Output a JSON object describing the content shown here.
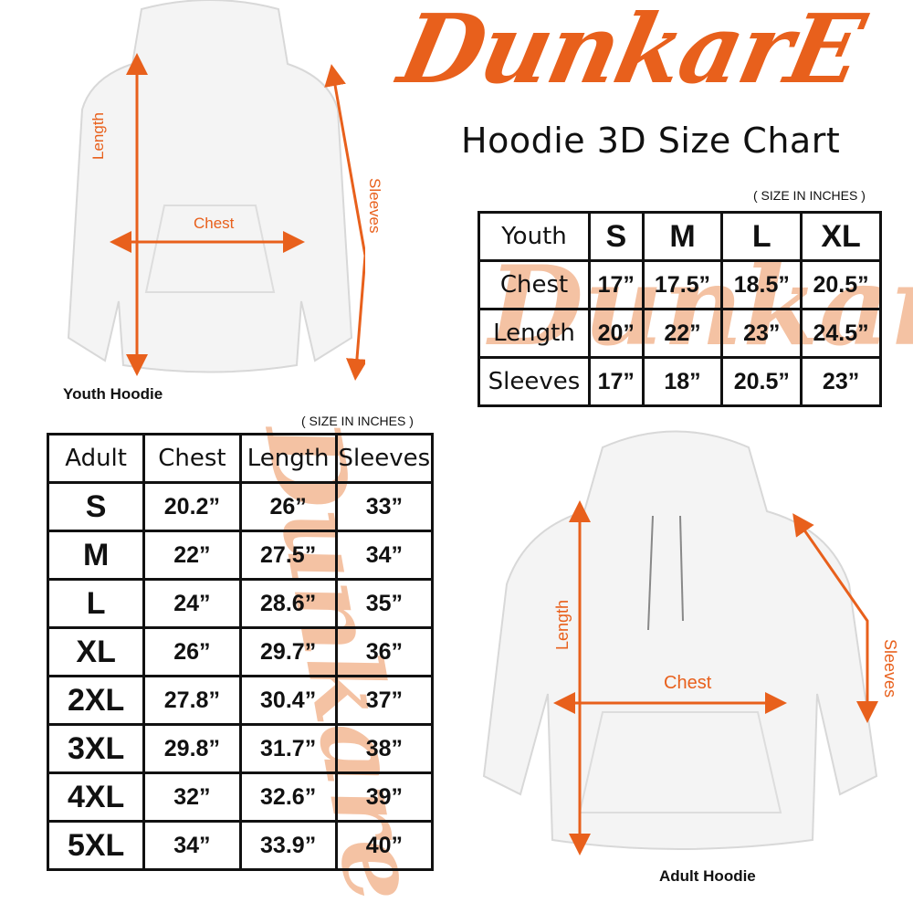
{
  "brand": {
    "logo_text": "DunkarE",
    "color": "#e8601c"
  },
  "title": "Hoodie 3D Size Chart",
  "youth": {
    "units_note": "( SIZE IN INCHES )",
    "caption": "Youth Hoodie",
    "diagram_labels": {
      "length": "Length",
      "chest": "Chest",
      "sleeves": "Sleeves"
    },
    "header": [
      "Youth",
      "S",
      "M",
      "L",
      "XL"
    ],
    "rows": [
      [
        "Chest",
        "17”",
        "17.5”",
        "18.5”",
        "20.5”"
      ],
      [
        "Length",
        "20”",
        "22”",
        "23”",
        "24.5”"
      ],
      [
        "Sleeves",
        "17”",
        "18”",
        "20.5”",
        "23”"
      ]
    ]
  },
  "adult": {
    "units_note": "( SIZE IN INCHES )",
    "caption": "Adult Hoodie",
    "diagram_labels": {
      "length": "Length",
      "chest": "Chest",
      "sleeves": "Sleeves"
    },
    "header": [
      "Adult",
      "Chest",
      "Length",
      "Sleeves"
    ],
    "rows": [
      [
        "S",
        "20.2”",
        "26”",
        "33”"
      ],
      [
        "M",
        "22”",
        "27.5”",
        "34”"
      ],
      [
        "L",
        "24”",
        "28.6”",
        "35”"
      ],
      [
        "XL",
        "26”",
        "29.7”",
        "36”"
      ],
      [
        "2XL",
        "27.8”",
        "30.4”",
        "37”"
      ],
      [
        "3XL",
        "29.8”",
        "31.7”",
        "38”"
      ],
      [
        "4XL",
        "32”",
        "32.6”",
        "39”"
      ],
      [
        "5XL",
        "34”",
        "33.9”",
        "40”"
      ]
    ]
  }
}
